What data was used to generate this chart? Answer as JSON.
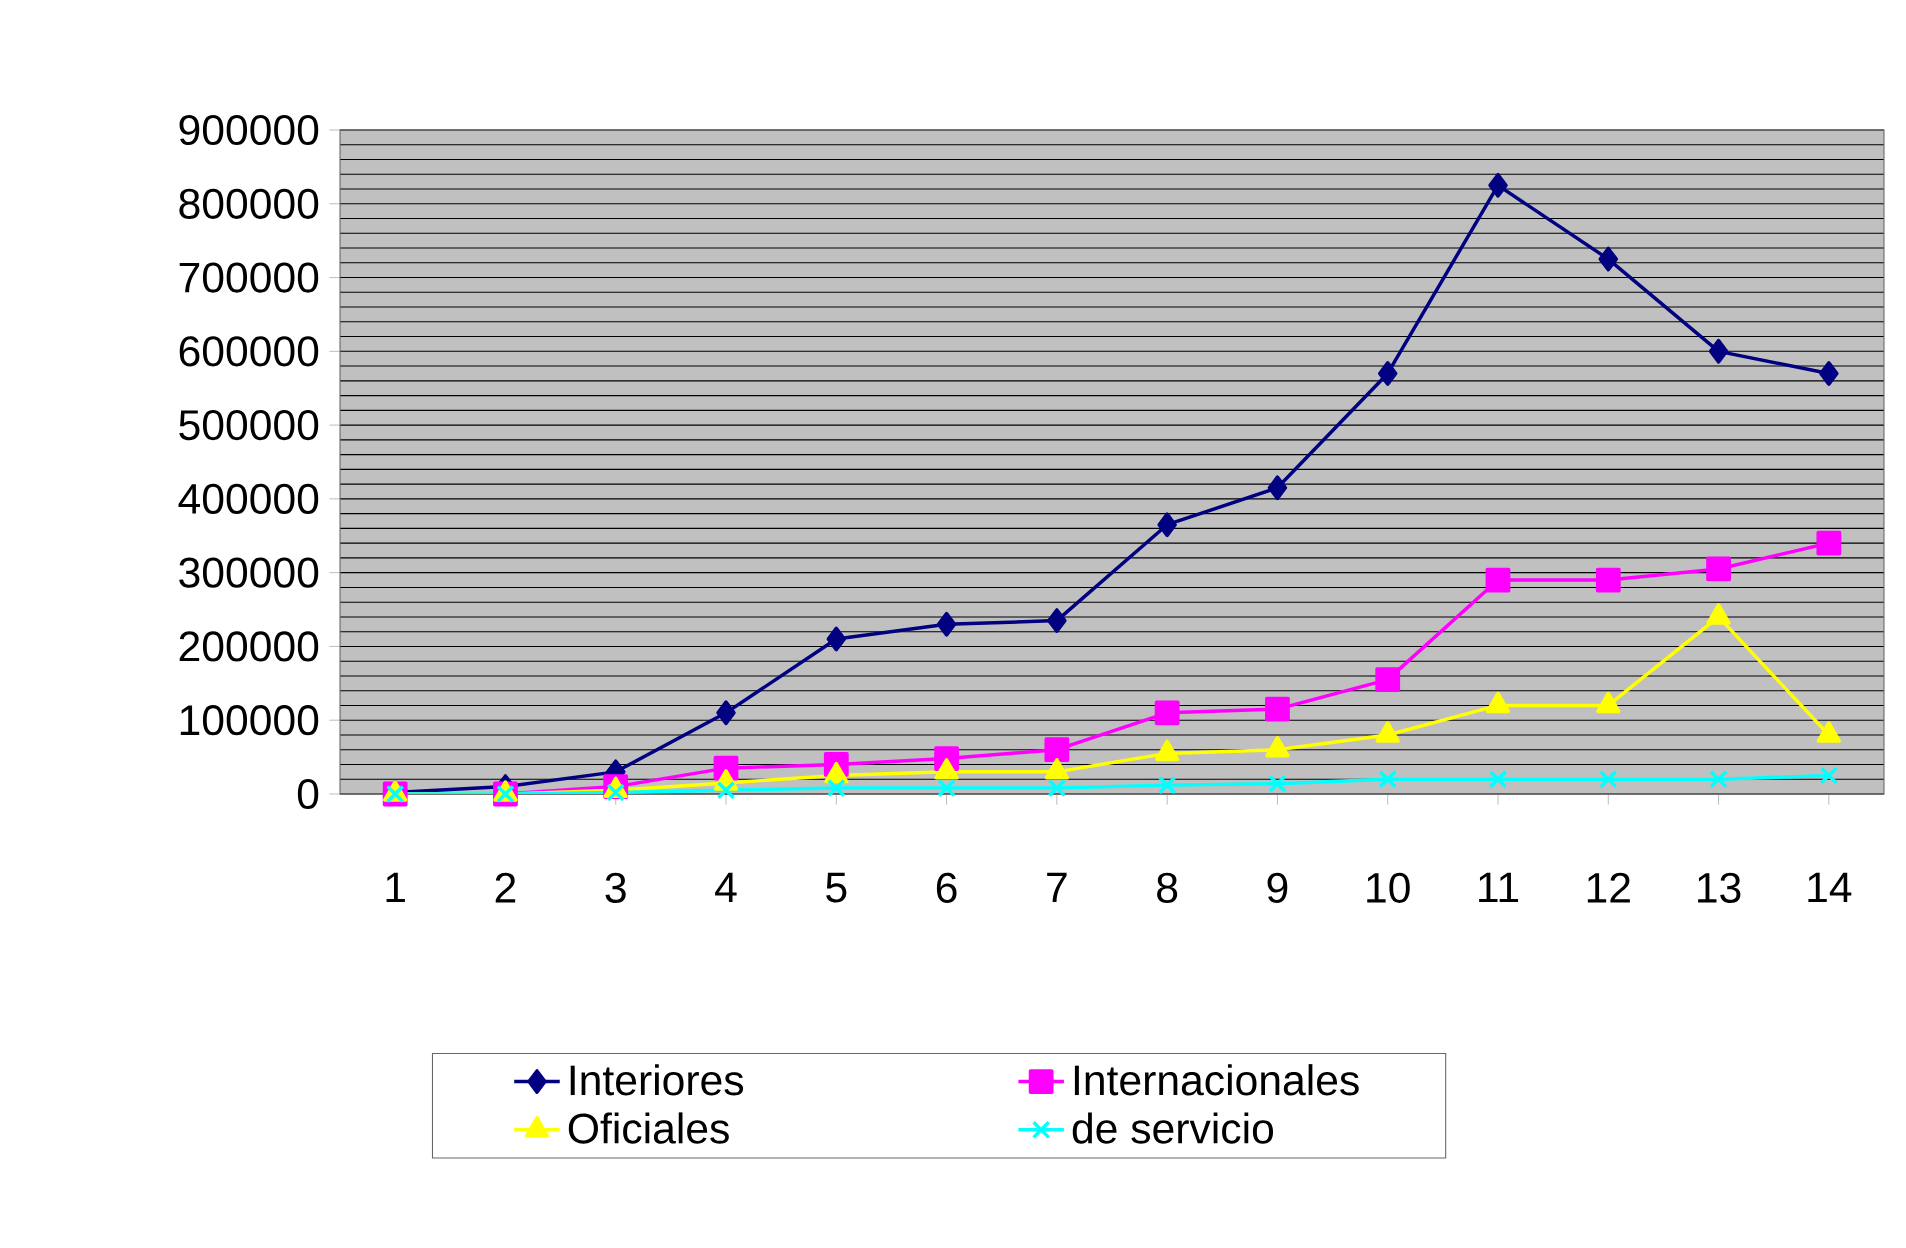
{
  "chart_data": {
    "type": "line",
    "categories": [
      "1",
      "2",
      "3",
      "4",
      "5",
      "6",
      "7",
      "8",
      "9",
      "10",
      "11",
      "12",
      "13",
      "14"
    ],
    "series": [
      {
        "name": "Interiores",
        "color": "#000080",
        "marker": "diamond",
        "values": [
          2000,
          10000,
          30000,
          110000,
          210000,
          230000,
          235000,
          365000,
          415000,
          570000,
          825000,
          725000,
          600000,
          570000
        ]
      },
      {
        "name": "Internacionales",
        "color": "#ff00ff",
        "marker": "square",
        "values": [
          0,
          0,
          10000,
          35000,
          40000,
          48000,
          60000,
          110000,
          115000,
          155000,
          290000,
          290000,
          305000,
          340000
        ]
      },
      {
        "name": "Oficiales",
        "color": "#ffff00",
        "marker": "triangle",
        "values": [
          0,
          0,
          5000,
          15000,
          25000,
          30000,
          30000,
          55000,
          60000,
          80000,
          120000,
          120000,
          240000,
          80000
        ]
      },
      {
        "name": "de servicio",
        "color": "#00ffff",
        "marker": "cross",
        "values": [
          0,
          0,
          2000,
          5000,
          8000,
          8000,
          8000,
          12000,
          14000,
          20000,
          20000,
          20000,
          20000,
          25000
        ]
      }
    ],
    "ylim": [
      0,
      900000
    ],
    "yticks": [
      0,
      100000,
      200000,
      300000,
      400000,
      500000,
      600000,
      700000,
      800000,
      900000
    ],
    "grid": "y",
    "legend": "bottom"
  }
}
